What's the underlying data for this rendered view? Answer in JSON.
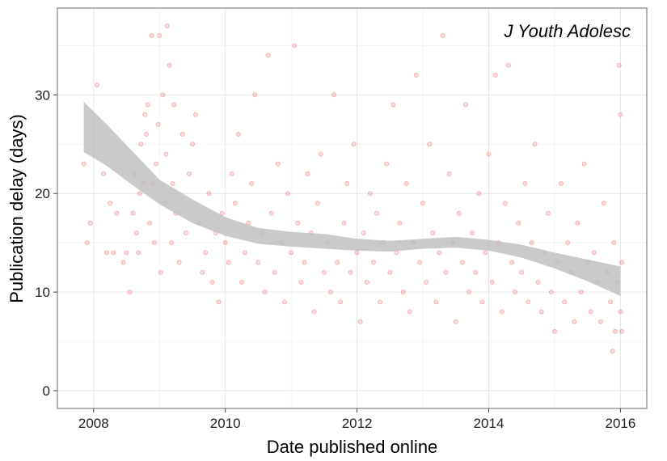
{
  "chart_data": {
    "type": "scatter",
    "title": "",
    "annotation": "J Youth Adolesc",
    "xlabel": "Date published online",
    "ylabel": "Publication delay (days)",
    "xlim": [
      2007.45,
      2016.4
    ],
    "ylim": [
      -1.8,
      38.8
    ],
    "x_ticks": [
      2008,
      2010,
      2012,
      2014,
      2016
    ],
    "y_ticks": [
      0,
      10,
      20,
      30
    ],
    "grid": true,
    "point_color": "#e8393a",
    "point_opacity": 0.18,
    "smooth_fill": "#bdbdbd",
    "points": [
      [
        2007.85,
        23
      ],
      [
        2007.9,
        15
      ],
      [
        2007.95,
        17
      ],
      [
        2008.05,
        31
      ],
      [
        2008.15,
        22
      ],
      [
        2008.2,
        14
      ],
      [
        2008.25,
        19
      ],
      [
        2008.3,
        14
      ],
      [
        2008.35,
        18
      ],
      [
        2008.45,
        13
      ],
      [
        2008.5,
        14
      ],
      [
        2008.55,
        10
      ],
      [
        2008.6,
        18
      ],
      [
        2008.62,
        22
      ],
      [
        2008.65,
        16
      ],
      [
        2008.68,
        14
      ],
      [
        2008.7,
        20
      ],
      [
        2008.72,
        25
      ],
      [
        2008.75,
        21
      ],
      [
        2008.78,
        28
      ],
      [
        2008.8,
        26
      ],
      [
        2008.82,
        29
      ],
      [
        2008.85,
        17
      ],
      [
        2008.88,
        36
      ],
      [
        2008.9,
        21
      ],
      [
        2008.92,
        15
      ],
      [
        2008.95,
        23
      ],
      [
        2008.98,
        27
      ],
      [
        2009.0,
        36
      ],
      [
        2009.02,
        12
      ],
      [
        2009.05,
        30
      ],
      [
        2009.08,
        19
      ],
      [
        2009.1,
        24
      ],
      [
        2009.12,
        37
      ],
      [
        2009.15,
        33
      ],
      [
        2009.18,
        15
      ],
      [
        2009.2,
        21
      ],
      [
        2009.22,
        29
      ],
      [
        2009.25,
        18
      ],
      [
        2009.3,
        13
      ],
      [
        2009.35,
        26
      ],
      [
        2009.4,
        16
      ],
      [
        2009.45,
        22
      ],
      [
        2009.5,
        25
      ],
      [
        2009.55,
        28
      ],
      [
        2009.6,
        17
      ],
      [
        2009.65,
        12
      ],
      [
        2009.7,
        14
      ],
      [
        2009.75,
        20
      ],
      [
        2009.8,
        11
      ],
      [
        2009.85,
        16
      ],
      [
        2009.9,
        9
      ],
      [
        2009.95,
        18
      ],
      [
        2010.0,
        15
      ],
      [
        2010.05,
        13
      ],
      [
        2010.1,
        22
      ],
      [
        2010.15,
        19
      ],
      [
        2010.2,
        26
      ],
      [
        2010.25,
        11
      ],
      [
        2010.3,
        14
      ],
      [
        2010.35,
        17
      ],
      [
        2010.4,
        21
      ],
      [
        2010.45,
        30
      ],
      [
        2010.5,
        13
      ],
      [
        2010.55,
        16
      ],
      [
        2010.6,
        10
      ],
      [
        2010.65,
        34
      ],
      [
        2010.7,
        18
      ],
      [
        2010.75,
        12
      ],
      [
        2010.8,
        23
      ],
      [
        2010.85,
        15
      ],
      [
        2010.9,
        9
      ],
      [
        2010.95,
        20
      ],
      [
        2011.0,
        14
      ],
      [
        2011.05,
        35
      ],
      [
        2011.1,
        17
      ],
      [
        2011.15,
        11
      ],
      [
        2011.2,
        13
      ],
      [
        2011.25,
        22
      ],
      [
        2011.3,
        16
      ],
      [
        2011.35,
        8
      ],
      [
        2011.4,
        19
      ],
      [
        2011.45,
        24
      ],
      [
        2011.5,
        12
      ],
      [
        2011.55,
        15
      ],
      [
        2011.6,
        10
      ],
      [
        2011.65,
        30
      ],
      [
        2011.7,
        13
      ],
      [
        2011.75,
        9
      ],
      [
        2011.8,
        17
      ],
      [
        2011.85,
        21
      ],
      [
        2011.9,
        12
      ],
      [
        2011.95,
        25
      ],
      [
        2012.0,
        14
      ],
      [
        2012.05,
        7
      ],
      [
        2012.1,
        16
      ],
      [
        2012.15,
        11
      ],
      [
        2012.2,
        20
      ],
      [
        2012.25,
        13
      ],
      [
        2012.3,
        18
      ],
      [
        2012.35,
        9
      ],
      [
        2012.4,
        15
      ],
      [
        2012.45,
        23
      ],
      [
        2012.5,
        12
      ],
      [
        2012.55,
        29
      ],
      [
        2012.6,
        14
      ],
      [
        2012.65,
        17
      ],
      [
        2012.7,
        10
      ],
      [
        2012.75,
        21
      ],
      [
        2012.8,
        8
      ],
      [
        2012.85,
        15
      ],
      [
        2012.9,
        32
      ],
      [
        2012.95,
        13
      ],
      [
        2013.0,
        19
      ],
      [
        2013.05,
        11
      ],
      [
        2013.1,
        25
      ],
      [
        2013.15,
        16
      ],
      [
        2013.2,
        9
      ],
      [
        2013.25,
        14
      ],
      [
        2013.3,
        36
      ],
      [
        2013.35,
        12
      ],
      [
        2013.4,
        22
      ],
      [
        2013.45,
        15
      ],
      [
        2013.5,
        7
      ],
      [
        2013.55,
        18
      ],
      [
        2013.6,
        13
      ],
      [
        2013.65,
        29
      ],
      [
        2013.7,
        10
      ],
      [
        2013.75,
        16
      ],
      [
        2013.8,
        12
      ],
      [
        2013.85,
        20
      ],
      [
        2013.9,
        9
      ],
      [
        2013.95,
        14
      ],
      [
        2014.0,
        24
      ],
      [
        2014.05,
        11
      ],
      [
        2014.1,
        32
      ],
      [
        2014.15,
        15
      ],
      [
        2014.2,
        8
      ],
      [
        2014.25,
        19
      ],
      [
        2014.3,
        33
      ],
      [
        2014.35,
        13
      ],
      [
        2014.4,
        10
      ],
      [
        2014.45,
        17
      ],
      [
        2014.5,
        12
      ],
      [
        2014.55,
        21
      ],
      [
        2014.6,
        9
      ],
      [
        2014.65,
        15
      ],
      [
        2014.7,
        25
      ],
      [
        2014.75,
        11
      ],
      [
        2014.8,
        8
      ],
      [
        2014.85,
        14
      ],
      [
        2014.9,
        18
      ],
      [
        2014.95,
        10
      ],
      [
        2015.0,
        6
      ],
      [
        2015.05,
        13
      ],
      [
        2015.1,
        21
      ],
      [
        2015.15,
        9
      ],
      [
        2015.2,
        15
      ],
      [
        2015.25,
        12
      ],
      [
        2015.3,
        7
      ],
      [
        2015.35,
        17
      ],
      [
        2015.4,
        10
      ],
      [
        2015.45,
        23
      ],
      [
        2015.5,
        13
      ],
      [
        2015.55,
        8
      ],
      [
        2015.6,
        14
      ],
      [
        2015.65,
        11
      ],
      [
        2015.7,
        7
      ],
      [
        2015.75,
        19
      ],
      [
        2015.8,
        12
      ],
      [
        2015.85,
        9
      ],
      [
        2015.88,
        4
      ],
      [
        2015.9,
        15
      ],
      [
        2015.92,
        6
      ],
      [
        2015.95,
        11
      ],
      [
        2015.98,
        33
      ],
      [
        2016.0,
        8
      ],
      [
        2016.0,
        28
      ],
      [
        2016.02,
        13
      ],
      [
        2016.02,
        6
      ]
    ],
    "smooth": {
      "x": [
        2007.85,
        2008.2,
        2008.6,
        2009.0,
        2009.5,
        2010.0,
        2010.5,
        2011.0,
        2011.5,
        2012.0,
        2012.5,
        2013.0,
        2013.5,
        2014.0,
        2014.5,
        2015.0,
        2015.5,
        2016.0
      ],
      "upper": [
        29.3,
        27.0,
        24.2,
        21.4,
        19.4,
        17.6,
        16.5,
        16.1,
        15.9,
        15.4,
        15.2,
        15.4,
        15.6,
        15.3,
        14.8,
        14.0,
        13.3,
        12.6
      ],
      "lower": [
        24.2,
        22.8,
        20.8,
        18.9,
        17.0,
        15.7,
        14.9,
        14.6,
        14.4,
        14.2,
        14.1,
        14.4,
        14.5,
        14.2,
        13.5,
        12.4,
        11.1,
        9.6
      ]
    }
  }
}
